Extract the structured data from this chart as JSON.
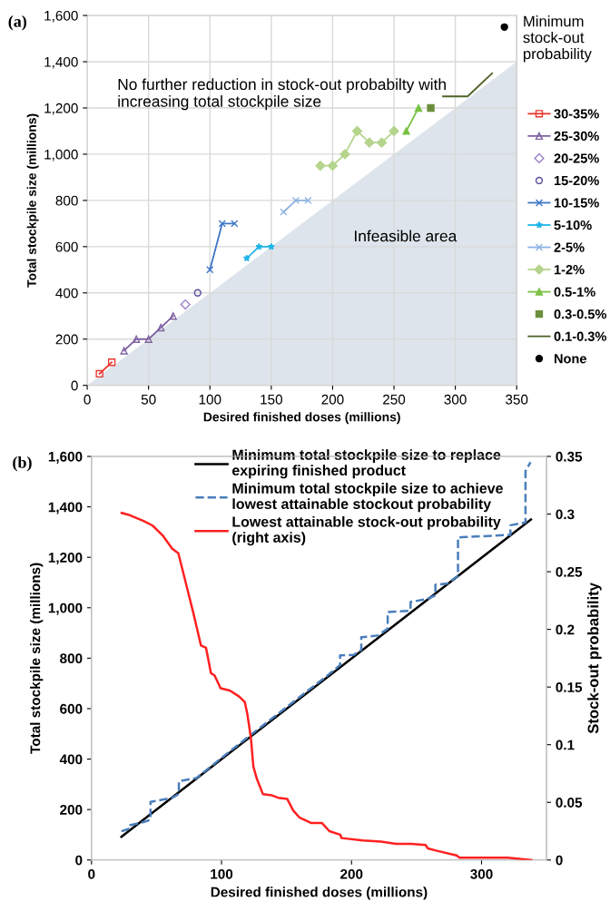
{
  "chart_data": [
    {
      "type": "line",
      "title": "(a)",
      "xlabel": "Desired finished doses (millions)",
      "ylabel": "Total stockpile size (millions)",
      "legend_title": "Minimum stock-out probability",
      "xlim": [
        0,
        350
      ],
      "xticks": [
        0,
        50,
        100,
        150,
        200,
        250,
        300,
        350
      ],
      "ylim": [
        0,
        1600
      ],
      "yticks": [
        0,
        200,
        400,
        600,
        800,
        {
          "value": 1000,
          "label": "1,000"
        },
        {
          "value": 1200,
          "label": "1,200"
        },
        {
          "value": 1400,
          "label": "1,400"
        },
        {
          "value": 1600,
          "label": "1,600"
        }
      ],
      "grid": true,
      "legend": "right",
      "annotations": [
        "No further reduction in stock-out probabilty with increasing total stockpile size",
        "Infeasible area"
      ],
      "series": [
        {
          "type": "area",
          "color": "#dde4eb",
          "x": [
            0,
            350
          ],
          "values": [
            0,
            1400
          ]
        },
        {
          "name": "30-35%",
          "color": "#e8382e",
          "marker": "square",
          "x": [
            10,
            20
          ],
          "values": [
            50,
            100
          ]
        },
        {
          "name": "25-30%",
          "color": "#8064a2",
          "marker": "triangle",
          "x": [
            30,
            40,
            50,
            60,
            70
          ],
          "values": [
            150,
            200,
            200,
            250,
            300
          ]
        },
        {
          "name": "20-25%",
          "type": "scatter",
          "color": "#9b7fc8",
          "marker": "diamond",
          "x": [
            80
          ],
          "values": [
            350
          ]
        },
        {
          "name": "15-20%",
          "type": "scatter",
          "color": "#5a4e9c",
          "marker": "circle",
          "x": [
            90
          ],
          "values": [
            400
          ]
        },
        {
          "name": "10-15%",
          "color": "#3f77c8",
          "marker": "cross",
          "x": [
            100,
            110,
            120
          ],
          "values": [
            500,
            700,
            700
          ]
        },
        {
          "name": "5-10%",
          "color": "#1fb4e8",
          "marker": "star",
          "x": [
            130,
            140,
            150
          ],
          "values": [
            550,
            600,
            600
          ]
        },
        {
          "name": "2-5%",
          "color": "#8db3e2",
          "marker": "cross",
          "x": [
            160,
            170,
            180
          ],
          "values": [
            750,
            800,
            800
          ]
        },
        {
          "name": "1-2%",
          "color": "#b5d48c",
          "marker": "diamond",
          "x": [
            190,
            200,
            210,
            220,
            230,
            240,
            250
          ],
          "values": [
            950,
            950,
            1000,
            1100,
            1050,
            1050,
            1100
          ]
        },
        {
          "name": "0.5-1%",
          "color": "#7ac143",
          "marker": "triangle",
          "x": [
            260,
            270
          ],
          "values": [
            1100,
            1200
          ]
        },
        {
          "name": "0.3-0.5%",
          "type": "scatter",
          "color": "#6b8e3a",
          "marker": "square",
          "x": [
            280
          ],
          "values": [
            1200
          ]
        },
        {
          "name": "0.1-0.3%",
          "color": "#4f6228",
          "marker": "none",
          "x": [
            290,
            300,
            310,
            320,
            330
          ],
          "values": [
            1250,
            1250,
            1250,
            1300,
            1350
          ]
        },
        {
          "name": "None",
          "type": "scatter",
          "color": "#000000",
          "marker": "circle",
          "x": [
            340
          ],
          "values": [
            1550
          ]
        }
      ]
    },
    {
      "type": "line",
      "title": "(b)",
      "xlabel": "Desired finished doses (millions)",
      "ylabel": "Total stockpile size (millions)",
      "y2label": "Stock-out probability",
      "xlim": [
        0,
        350
      ],
      "xticks": [
        0,
        100,
        200,
        300
      ],
      "ylim": [
        0,
        1600
      ],
      "yticks": [
        0,
        200,
        400,
        600,
        800,
        {
          "value": 1000,
          "label": "1,000"
        },
        {
          "value": 1200,
          "label": "1,200"
        },
        {
          "value": 1400,
          "label": "1,400"
        },
        {
          "value": 1600,
          "label": "1,600"
        }
      ],
      "y2lim": [
        0,
        0.35
      ],
      "y2ticks": [
        0,
        0.05,
        0.1,
        0.15,
        0.2,
        0.25,
        0.3,
        0.35
      ],
      "grid": false,
      "legend": "top",
      "series": [
        {
          "name": "Minimum total stockpile size to replace\nexpiring finished product",
          "color": "#000000",
          "line_style": "solid",
          "x": [
            23,
            338
          ],
          "values": [
            92,
            1350
          ]
        },
        {
          "name": "Minimum total stockpile size to achieve\nlowest attainable stockout probability",
          "color": "#4a7ebb",
          "line_style": "dashed",
          "x": [
            23,
            29.5,
            29.5,
            40,
            45.4,
            45.4,
            62,
            67.2,
            67.2,
            80.7,
            108.6,
            136.5,
            159.8,
            180.7,
            191.2,
            191.2,
            201.7,
            207.5,
            207.5,
            220.3,
            227.8,
            227.8,
            244.7,
            245.4,
            245.4,
            257.5,
            264.5,
            264.5,
            273.8,
            281.9,
            281.9,
            281.9,
            322.2,
            322.2,
            333.8,
            333.8,
            337.7
          ],
          "values": [
            114,
            125,
            138,
            150,
            160,
            230,
            246,
            262,
            312,
            325,
            440,
            552,
            645,
            728,
            773,
            811,
            813,
            833,
            883,
            890,
            917,
            983,
            988,
            995,
            1023,
            1034,
            1049,
            1091,
            1096,
            1127,
            1193,
            1279,
            1289,
            1327,
            1338,
            1541,
            1577
          ]
        },
        {
          "name": "Lowest attainable stock-out probability\n(right axis)",
          "color": "#ff2020",
          "line_style": "solid",
          "axis": "y2",
          "x": [
            23.2,
            29.5,
            40,
            47,
            55.1,
            62.1,
            66.8,
            72.6,
            78.4,
            84.2,
            88.1,
            91.9,
            94.7,
            99.3,
            106.3,
            113.3,
            117.9,
            119.8,
            122.6,
            124.5,
            127.3,
            131.9,
            138.9,
            143.5,
            150.5,
            155.1,
            159.8,
            169.1,
            177.3,
            183.0,
            191.2,
            192.4,
            208.7,
            222.6,
            234.3,
            245.9,
            257,
            258.7,
            265.6,
            280.8,
            283.1,
            320.3,
            338.4
          ],
          "values": [
            0.301,
            0.299,
            0.294,
            0.29,
            0.281,
            0.27,
            0.266,
            0.24,
            0.214,
            0.186,
            0.184,
            0.162,
            0.16,
            0.149,
            0.147,
            0.142,
            0.137,
            0.127,
            0.106,
            0.081,
            0.07,
            0.057,
            0.056,
            0.054,
            0.053,
            0.043,
            0.037,
            0.032,
            0.032,
            0.025,
            0.022,
            0.019,
            0.017,
            0.016,
            0.014,
            0.014,
            0.013,
            0.01,
            0.008,
            0.004,
            0.002,
            0.002,
            0
          ]
        }
      ]
    }
  ]
}
